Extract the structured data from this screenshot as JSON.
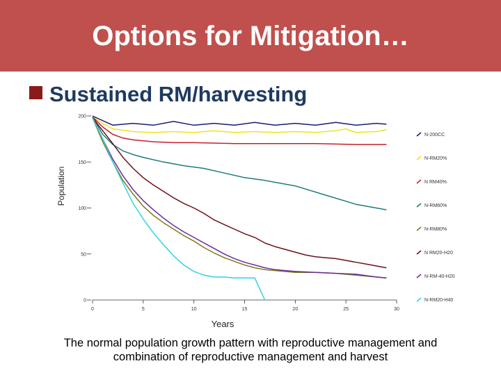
{
  "slide": {
    "title": "Options for Mitigation…",
    "bullet": "Sustained RM/harvesting",
    "caption_line1": "The normal population growth pattern with reproductive management and",
    "caption_line2": "combination of reproductive management and harvest"
  },
  "colors": {
    "title_bar": "#c0504d",
    "bullet_square": "#8b1a1a",
    "bullet_text": "#1f3a5f"
  },
  "chart_data": {
    "type": "line",
    "xlabel": "Years",
    "ylabel": "Population",
    "xlim": [
      0,
      30
    ],
    "ylim": [
      0,
      200
    ],
    "x_ticks": [
      "0",
      "5",
      "10",
      "15",
      "20",
      "25",
      "30"
    ],
    "y_ticks": [
      "0",
      "50",
      "100",
      "150",
      "200"
    ],
    "legend_position": "right",
    "series": [
      {
        "name": "N-200CC",
        "color": "#1a1a6e",
        "points": [
          [
            0,
            200
          ],
          [
            2,
            190
          ],
          [
            4,
            192
          ],
          [
            6,
            190
          ],
          [
            8,
            194
          ],
          [
            10,
            190
          ],
          [
            12,
            192
          ],
          [
            14,
            190
          ],
          [
            16,
            193
          ],
          [
            18,
            190
          ],
          [
            20,
            192
          ],
          [
            22,
            190
          ],
          [
            24,
            193
          ],
          [
            26,
            190
          ],
          [
            28,
            192
          ],
          [
            29,
            191
          ]
        ]
      },
      {
        "name": "N-RM20%",
        "color": "#f2e21c",
        "points": [
          [
            0,
            199
          ],
          [
            1,
            192
          ],
          [
            2,
            186
          ],
          [
            4,
            183
          ],
          [
            6,
            182
          ],
          [
            8,
            183
          ],
          [
            10,
            182
          ],
          [
            12,
            184
          ],
          [
            14,
            182
          ],
          [
            16,
            183
          ],
          [
            18,
            182
          ],
          [
            20,
            183
          ],
          [
            22,
            182
          ],
          [
            24,
            184
          ],
          [
            25,
            186
          ],
          [
            26,
            182
          ],
          [
            28,
            183
          ],
          [
            29,
            185
          ]
        ]
      },
      {
        "name": "N RM40%",
        "color": "#c81e2a",
        "points": [
          [
            0,
            199
          ],
          [
            1,
            188
          ],
          [
            2,
            180
          ],
          [
            3,
            176
          ],
          [
            4,
            174
          ],
          [
            6,
            172
          ],
          [
            8,
            171
          ],
          [
            10,
            171
          ],
          [
            14,
            170
          ],
          [
            18,
            170
          ],
          [
            22,
            170
          ],
          [
            26,
            169
          ],
          [
            29,
            169
          ]
        ]
      },
      {
        "name": "N-RM60%",
        "color": "#1f7a7a",
        "points": [
          [
            0,
            199
          ],
          [
            1,
            180
          ],
          [
            2,
            169
          ],
          [
            3,
            162
          ],
          [
            4,
            158
          ],
          [
            5,
            155
          ],
          [
            7,
            150
          ],
          [
            9,
            146
          ],
          [
            11,
            143
          ],
          [
            13,
            138
          ],
          [
            15,
            133
          ],
          [
            17,
            130
          ],
          [
            20,
            124
          ],
          [
            23,
            114
          ],
          [
            26,
            104
          ],
          [
            29,
            98
          ]
        ]
      },
      {
        "name": "N-RM80%",
        "color": "#7f7a14",
        "points": [
          [
            0,
            198
          ],
          [
            1,
            172
          ],
          [
            2,
            150
          ],
          [
            3,
            130
          ],
          [
            4,
            115
          ],
          [
            5,
            102
          ],
          [
            6,
            92
          ],
          [
            7,
            84
          ],
          [
            8,
            77
          ],
          [
            9,
            70
          ],
          [
            10,
            64
          ],
          [
            11,
            57
          ],
          [
            12,
            51
          ],
          [
            13,
            46
          ],
          [
            14,
            42
          ],
          [
            15,
            38
          ],
          [
            16,
            35
          ],
          [
            17,
            33
          ],
          [
            18,
            32
          ],
          [
            20,
            30
          ],
          [
            22,
            30
          ],
          [
            24,
            29
          ],
          [
            26,
            27
          ],
          [
            28,
            25
          ],
          [
            29,
            24
          ]
        ]
      },
      {
        "name": "N RM20-H20",
        "color": "#6b0f1a",
        "points": [
          [
            0,
            198
          ],
          [
            1,
            184
          ],
          [
            2,
            170
          ],
          [
            3,
            155
          ],
          [
            4,
            143
          ],
          [
            5,
            133
          ],
          [
            6,
            125
          ],
          [
            7,
            118
          ],
          [
            8,
            111
          ],
          [
            9,
            105
          ],
          [
            10,
            100
          ],
          [
            11,
            94
          ],
          [
            12,
            87
          ],
          [
            13,
            82
          ],
          [
            14,
            77
          ],
          [
            15,
            72
          ],
          [
            16,
            68
          ],
          [
            17,
            62
          ],
          [
            18,
            58
          ],
          [
            19,
            55
          ],
          [
            20,
            52
          ],
          [
            21,
            49
          ],
          [
            22,
            47
          ],
          [
            23,
            46
          ],
          [
            24,
            45
          ],
          [
            25,
            43
          ],
          [
            26,
            41
          ],
          [
            27,
            39
          ],
          [
            28,
            37
          ],
          [
            29,
            35
          ]
        ]
      },
      {
        "name": "N-RM-40-H20",
        "color": "#6a2a9c",
        "points": [
          [
            0,
            198
          ],
          [
            1,
            175
          ],
          [
            2,
            153
          ],
          [
            3,
            135
          ],
          [
            4,
            120
          ],
          [
            5,
            108
          ],
          [
            6,
            98
          ],
          [
            7,
            89
          ],
          [
            8,
            81
          ],
          [
            9,
            74
          ],
          [
            10,
            68
          ],
          [
            11,
            62
          ],
          [
            12,
            56
          ],
          [
            13,
            50
          ],
          [
            14,
            45
          ],
          [
            15,
            41
          ],
          [
            16,
            38
          ],
          [
            17,
            35
          ],
          [
            18,
            33
          ],
          [
            19,
            32
          ],
          [
            20,
            31
          ],
          [
            22,
            30
          ],
          [
            24,
            29
          ],
          [
            26,
            28
          ],
          [
            28,
            25
          ],
          [
            29,
            24
          ]
        ]
      },
      {
        "name": "N-RM20-H40",
        "color": "#2ed3e0",
        "points": [
          [
            0,
            198
          ],
          [
            1,
            175
          ],
          [
            2,
            150
          ],
          [
            3,
            127
          ],
          [
            4,
            105
          ],
          [
            5,
            88
          ],
          [
            6,
            73
          ],
          [
            7,
            60
          ],
          [
            8,
            48
          ],
          [
            9,
            38
          ],
          [
            10,
            31
          ],
          [
            11,
            27
          ],
          [
            12,
            25
          ],
          [
            13,
            25
          ],
          [
            14,
            24
          ],
          [
            15,
            24
          ],
          [
            16,
            24
          ],
          [
            17,
            0
          ]
        ]
      }
    ]
  }
}
